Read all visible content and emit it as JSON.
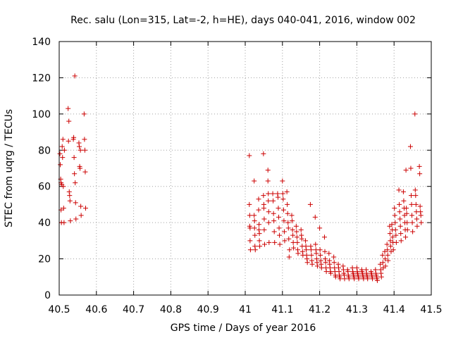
{
  "chart_data": {
    "type": "scatter",
    "title": "Rec. salu (Lon=315, Lat=-2, h=HE), days 040-041, 2016, window 002",
    "xlabel": "GPS time / Days of year 2016",
    "ylabel": "STEC from uqrg / TECUs",
    "xlim": [
      40.5,
      41.5
    ],
    "ylim": [
      0,
      140
    ],
    "xticks": [
      40.5,
      40.6,
      40.7,
      40.8,
      40.9,
      41,
      41.1,
      41.2,
      41.3,
      41.4,
      41.5
    ],
    "xtick_labels": [
      "40.5",
      "40.6",
      "40.7",
      "40.8",
      "40.9",
      "41",
      "41.1",
      "41.2",
      "41.3",
      "41.4",
      "41.5"
    ],
    "yticks": [
      0,
      20,
      40,
      60,
      80,
      100,
      120,
      140
    ],
    "ytick_labels": [
      "0",
      "20",
      "40",
      "60",
      "80",
      "100",
      "120",
      "140"
    ],
    "grid": true,
    "marker": "+",
    "color": "#cc0000",
    "series": [
      {
        "name": "STEC",
        "points": [
          [
            40.502,
            78
          ],
          [
            40.503,
            72
          ],
          [
            40.504,
            64
          ],
          [
            40.505,
            62
          ],
          [
            40.505,
            47
          ],
          [
            40.506,
            40
          ],
          [
            40.507,
            61
          ],
          [
            40.508,
            82
          ],
          [
            40.509,
            76
          ],
          [
            40.51,
            86
          ],
          [
            40.511,
            60
          ],
          [
            40.512,
            48
          ],
          [
            40.513,
            40
          ],
          [
            40.514,
            80
          ],
          [
            40.524,
            103
          ],
          [
            40.525,
            85
          ],
          [
            40.526,
            96
          ],
          [
            40.527,
            57
          ],
          [
            40.528,
            55
          ],
          [
            40.529,
            52
          ],
          [
            40.53,
            41
          ],
          [
            40.538,
            86
          ],
          [
            40.539,
            87
          ],
          [
            40.54,
            76
          ],
          [
            40.541,
            67
          ],
          [
            40.542,
            121
          ],
          [
            40.543,
            62
          ],
          [
            40.544,
            51
          ],
          [
            40.545,
            42
          ],
          [
            40.553,
            84
          ],
          [
            40.554,
            82
          ],
          [
            40.555,
            71
          ],
          [
            40.556,
            70
          ],
          [
            40.557,
            80
          ],
          [
            40.558,
            49
          ],
          [
            40.559,
            44
          ],
          [
            40.567,
            100
          ],
          [
            40.568,
            86
          ],
          [
            40.569,
            80
          ],
          [
            40.57,
            68
          ],
          [
            40.571,
            48
          ],
          [
            41.011,
            77
          ],
          [
            41.011,
            50
          ],
          [
            41.012,
            44
          ],
          [
            41.012,
            38
          ],
          [
            41.013,
            37
          ],
          [
            41.013,
            30
          ],
          [
            41.014,
            25
          ],
          [
            41.024,
            63
          ],
          [
            41.024,
            44
          ],
          [
            41.025,
            41
          ],
          [
            41.025,
            37
          ],
          [
            41.026,
            33
          ],
          [
            41.026,
            27
          ],
          [
            41.027,
            25
          ],
          [
            41.036,
            53
          ],
          [
            41.036,
            47
          ],
          [
            41.037,
            39
          ],
          [
            41.037,
            36
          ],
          [
            41.038,
            34
          ],
          [
            41.038,
            30
          ],
          [
            41.039,
            27
          ],
          [
            41.049,
            78
          ],
          [
            41.049,
            55
          ],
          [
            41.05,
            50
          ],
          [
            41.05,
            48
          ],
          [
            41.051,
            42
          ],
          [
            41.051,
            36
          ],
          [
            41.052,
            28
          ],
          [
            41.061,
            69
          ],
          [
            41.061,
            63
          ],
          [
            41.062,
            56
          ],
          [
            41.062,
            52
          ],
          [
            41.063,
            46
          ],
          [
            41.063,
            40
          ],
          [
            41.064,
            29
          ],
          [
            41.074,
            56
          ],
          [
            41.075,
            52
          ],
          [
            41.076,
            45
          ],
          [
            41.077,
            41
          ],
          [
            41.078,
            35
          ],
          [
            41.079,
            29
          ],
          [
            41.087,
            56
          ],
          [
            41.088,
            54
          ],
          [
            41.089,
            48
          ],
          [
            41.09,
            43
          ],
          [
            41.091,
            37
          ],
          [
            41.092,
            33
          ],
          [
            41.093,
            28
          ],
          [
            41.1,
            63
          ],
          [
            41.101,
            56
          ],
          [
            41.102,
            53
          ],
          [
            41.103,
            47
          ],
          [
            41.104,
            41
          ],
          [
            41.105,
            35
          ],
          [
            41.106,
            30
          ],
          [
            41.112,
            57
          ],
          [
            41.113,
            50
          ],
          [
            41.114,
            45
          ],
          [
            41.115,
            40
          ],
          [
            41.116,
            37
          ],
          [
            41.117,
            31
          ],
          [
            41.118,
            21
          ],
          [
            41.119,
            25
          ],
          [
            41.125,
            44
          ],
          [
            41.126,
            41
          ],
          [
            41.127,
            36
          ],
          [
            41.128,
            33
          ],
          [
            41.129,
            29
          ],
          [
            41.13,
            26
          ],
          [
            41.137,
            38
          ],
          [
            41.138,
            35
          ],
          [
            41.139,
            32
          ],
          [
            41.14,
            29
          ],
          [
            41.141,
            25
          ],
          [
            41.142,
            23
          ],
          [
            41.15,
            36
          ],
          [
            41.151,
            33
          ],
          [
            41.152,
            31
          ],
          [
            41.153,
            27
          ],
          [
            41.154,
            24
          ],
          [
            41.155,
            22
          ],
          [
            41.162,
            30
          ],
          [
            41.163,
            27
          ],
          [
            41.164,
            25
          ],
          [
            41.165,
            22
          ],
          [
            41.166,
            20
          ],
          [
            41.167,
            18
          ],
          [
            41.175,
            50
          ],
          [
            41.176,
            27
          ],
          [
            41.177,
            25
          ],
          [
            41.178,
            22
          ],
          [
            41.179,
            19
          ],
          [
            41.18,
            17
          ],
          [
            41.188,
            43
          ],
          [
            41.189,
            28
          ],
          [
            41.19,
            25
          ],
          [
            41.191,
            23
          ],
          [
            41.192,
            20
          ],
          [
            41.193,
            18
          ],
          [
            41.194,
            16
          ],
          [
            41.2,
            37
          ],
          [
            41.201,
            25
          ],
          [
            41.202,
            22
          ],
          [
            41.203,
            19
          ],
          [
            41.204,
            17
          ],
          [
            41.205,
            15
          ],
          [
            41.213,
            32
          ],
          [
            41.214,
            24
          ],
          [
            41.215,
            20
          ],
          [
            41.216,
            18
          ],
          [
            41.217,
            15
          ],
          [
            41.218,
            13
          ],
          [
            41.225,
            23
          ],
          [
            41.226,
            19
          ],
          [
            41.227,
            17
          ],
          [
            41.228,
            15
          ],
          [
            41.229,
            13
          ],
          [
            41.23,
            12
          ],
          [
            41.238,
            21
          ],
          [
            41.239,
            18
          ],
          [
            41.24,
            15
          ],
          [
            41.241,
            13
          ],
          [
            41.242,
            11
          ],
          [
            41.243,
            10
          ],
          [
            41.25,
            17
          ],
          [
            41.251,
            15
          ],
          [
            41.252,
            13
          ],
          [
            41.253,
            11
          ],
          [
            41.254,
            10
          ],
          [
            41.255,
            9
          ],
          [
            41.263,
            16
          ],
          [
            41.264,
            14
          ],
          [
            41.265,
            12
          ],
          [
            41.266,
            11
          ],
          [
            41.267,
            9
          ],
          [
            41.275,
            14
          ],
          [
            41.276,
            13
          ],
          [
            41.277,
            11
          ],
          [
            41.278,
            10
          ],
          [
            41.279,
            9
          ],
          [
            41.288,
            15
          ],
          [
            41.289,
            13
          ],
          [
            41.29,
            12
          ],
          [
            41.291,
            11
          ],
          [
            41.292,
            10
          ],
          [
            41.293,
            9
          ],
          [
            41.3,
            15
          ],
          [
            41.301,
            13
          ],
          [
            41.302,
            12
          ],
          [
            41.303,
            11
          ],
          [
            41.304,
            10
          ],
          [
            41.305,
            9
          ],
          [
            41.313,
            14
          ],
          [
            41.314,
            13
          ],
          [
            41.315,
            12
          ],
          [
            41.316,
            11
          ],
          [
            41.317,
            10
          ],
          [
            41.318,
            9
          ],
          [
            41.325,
            14
          ],
          [
            41.326,
            12
          ],
          [
            41.327,
            11
          ],
          [
            41.328,
            10
          ],
          [
            41.329,
            9
          ],
          [
            41.338,
            13
          ],
          [
            41.339,
            12
          ],
          [
            41.34,
            11
          ],
          [
            41.341,
            10
          ],
          [
            41.342,
            9
          ],
          [
            41.35,
            14
          ],
          [
            41.351,
            12
          ],
          [
            41.352,
            11
          ],
          [
            41.353,
            10
          ],
          [
            41.354,
            9
          ],
          [
            41.355,
            8
          ],
          [
            41.363,
            17
          ],
          [
            41.364,
            14
          ],
          [
            41.365,
            12
          ],
          [
            41.366,
            10
          ],
          [
            41.369,
            22
          ],
          [
            41.37,
            18
          ],
          [
            41.371,
            15
          ],
          [
            41.375,
            24
          ],
          [
            41.376,
            20
          ],
          [
            41.377,
            16
          ],
          [
            41.381,
            28
          ],
          [
            41.382,
            25
          ],
          [
            41.383,
            22
          ],
          [
            41.384,
            19
          ],
          [
            41.388,
            38
          ],
          [
            41.389,
            34
          ],
          [
            41.39,
            30
          ],
          [
            41.391,
            27
          ],
          [
            41.392,
            24
          ],
          [
            41.394,
            39
          ],
          [
            41.395,
            36
          ],
          [
            41.396,
            32
          ],
          [
            41.397,
            29
          ],
          [
            41.398,
            25
          ],
          [
            41.401,
            48
          ],
          [
            41.402,
            44
          ],
          [
            41.403,
            40
          ],
          [
            41.404,
            36
          ],
          [
            41.405,
            33
          ],
          [
            41.406,
            29
          ],
          [
            41.413,
            58
          ],
          [
            41.414,
            50
          ],
          [
            41.415,
            46
          ],
          [
            41.416,
            42
          ],
          [
            41.417,
            38
          ],
          [
            41.418,
            34
          ],
          [
            41.419,
            30
          ],
          [
            41.425,
            57
          ],
          [
            41.426,
            52
          ],
          [
            41.427,
            48
          ],
          [
            41.428,
            44
          ],
          [
            41.429,
            40
          ],
          [
            41.43,
            36
          ],
          [
            41.431,
            32
          ],
          [
            41.432,
            69
          ],
          [
            41.433,
            48
          ],
          [
            41.434,
            45
          ],
          [
            41.435,
            40
          ],
          [
            41.436,
            36
          ],
          [
            41.444,
            82
          ],
          [
            41.445,
            70
          ],
          [
            41.446,
            55
          ],
          [
            41.447,
            50
          ],
          [
            41.448,
            44
          ],
          [
            41.449,
            40
          ],
          [
            41.45,
            35
          ],
          [
            41.456,
            100
          ],
          [
            41.457,
            58
          ],
          [
            41.458,
            55
          ],
          [
            41.459,
            50
          ],
          [
            41.46,
            46
          ],
          [
            41.461,
            42
          ],
          [
            41.462,
            38
          ],
          [
            41.468,
            71
          ],
          [
            41.469,
            67
          ],
          [
            41.47,
            49
          ],
          [
            41.471,
            46
          ],
          [
            41.472,
            44
          ],
          [
            41.473,
            40
          ]
        ]
      }
    ]
  }
}
